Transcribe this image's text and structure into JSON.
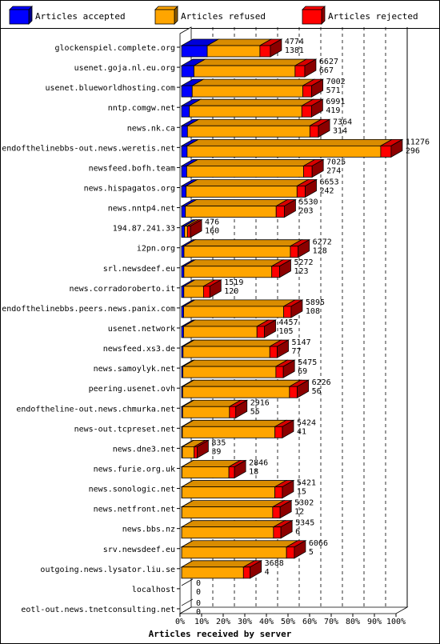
{
  "chart_data": {
    "type": "bar",
    "orientation": "horizontal",
    "stacked": true,
    "xlabel": "Articles received by server",
    "ylabel": "",
    "xlim": [
      0,
      100
    ],
    "x_ticks": [
      "0%",
      "10%",
      "20%",
      "30%",
      "40%",
      "50%",
      "60%",
      "70%",
      "80%",
      "90%",
      "100%"
    ],
    "legend_position": "top",
    "colors": {
      "accepted": "#0000ff",
      "refused": "#ffa500",
      "rejected": "#ff0000"
    },
    "series": [
      {
        "key": "accepted",
        "name": "Articles accepted",
        "color": "#0000ff"
      },
      {
        "key": "refused",
        "name": "Articles refused",
        "color": "#ffa500"
      },
      {
        "key": "rejected",
        "name": "Articles rejected",
        "color": "#ff0000"
      }
    ],
    "categories": [
      "glockenspiel.complete.org",
      "usenet.goja.nl.eu.org",
      "usenet.blueworldhosting.com",
      "nntp.comgw.net",
      "news.nk.ca",
      "endofthelinebbs-out.news.weretis.net",
      "newsfeed.bofh.team",
      "news.hispagatos.org",
      "news.nntp4.net",
      "194.87.241.33",
      "i2pn.org",
      "srl.newsdeef.eu",
      "news.corradoroberto.it",
      "endofthelinebbs.peers.news.panix.com",
      "usenet.network",
      "newsfeed.xs3.de",
      "news.samoylyk.net",
      "peering.usenet.ovh",
      "endoftheline-out.news.chmurka.net",
      "news-out.tcpreset.net",
      "news.dne3.net",
      "news.furie.org.uk",
      "news.sonologic.net",
      "news.netfront.net",
      "news.bbs.nz",
      "srv.newsdeef.eu",
      "outgoing.news.lysator.liu.se",
      "localhost",
      "eotl-out.news.tnetconsulting.net"
    ],
    "totals": [
      4774,
      6627,
      7002,
      6991,
      7364,
      11276,
      7025,
      6653,
      5530,
      476,
      6272,
      5272,
      1519,
      5895,
      4457,
      5147,
      5475,
      6226,
      2916,
      5424,
      835,
      2846,
      5421,
      5302,
      5345,
      6066,
      3688,
      0,
      0
    ],
    "accepted": [
      1381,
      667,
      571,
      419,
      314,
      296,
      274,
      242,
      203,
      160,
      128,
      123,
      120,
      108,
      105,
      77,
      69,
      56,
      55,
      41,
      39,
      18,
      15,
      12,
      6,
      5,
      4,
      0,
      0
    ],
    "rejected": [
      560,
      520,
      480,
      520,
      460,
      560,
      460,
      440,
      440,
      160,
      420,
      420,
      340,
      400,
      400,
      400,
      400,
      420,
      340,
      400,
      160,
      300,
      400,
      400,
      400,
      420,
      360,
      0,
      0
    ]
  }
}
